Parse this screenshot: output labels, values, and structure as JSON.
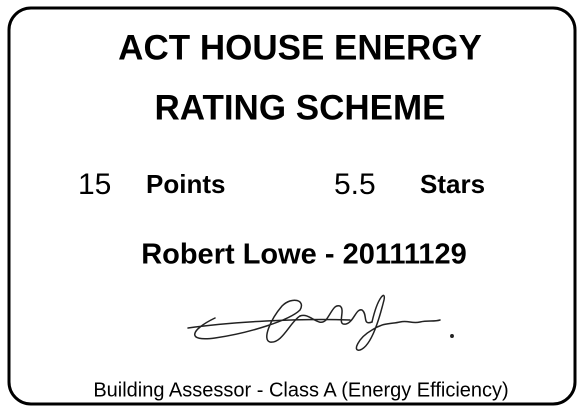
{
  "header": {
    "title_lines": [
      "ACT HOUSE ENERGY",
      "RATING SCHEME"
    ]
  },
  "rating": {
    "points": {
      "value": 15,
      "label": "Points"
    },
    "stars": {
      "value": 5.5,
      "label": "Stars"
    }
  },
  "assessor": {
    "name_line": "Robert Lowe - 20111129",
    "role": "Building Assessor - Class A (Energy Efficiency)"
  }
}
